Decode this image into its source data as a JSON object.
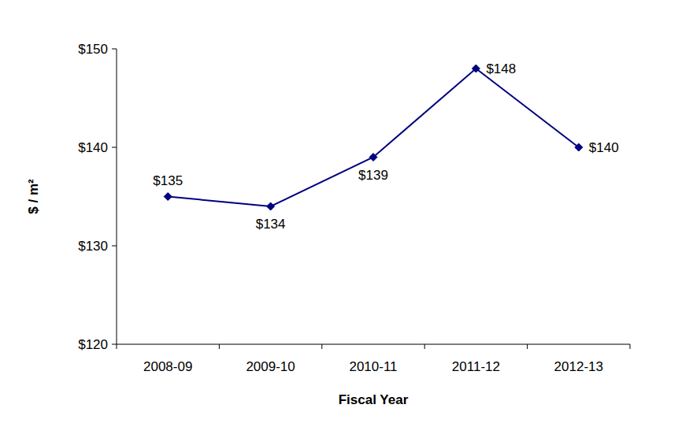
{
  "chart_data": {
    "type": "line",
    "x_label": "Fiscal Year",
    "y_label": "$ / m²",
    "categories": [
      "2008-09",
      "2009-10",
      "2010-11",
      "2011-12",
      "2012-13"
    ],
    "values": [
      135,
      134,
      139,
      148,
      140
    ],
    "value_labels": [
      "$135",
      "$134",
      "$139",
      "$148",
      "$140"
    ],
    "data_labels": true,
    "color": "#000080",
    "marker": "diamond",
    "grid": false,
    "ylim": [
      120,
      150
    ],
    "yticks": [
      {
        "value": 120,
        "label": "$120"
      },
      {
        "value": 130,
        "label": "$130"
      },
      {
        "value": 140,
        "label": "$140"
      },
      {
        "value": 150,
        "label": "$150"
      }
    ]
  }
}
